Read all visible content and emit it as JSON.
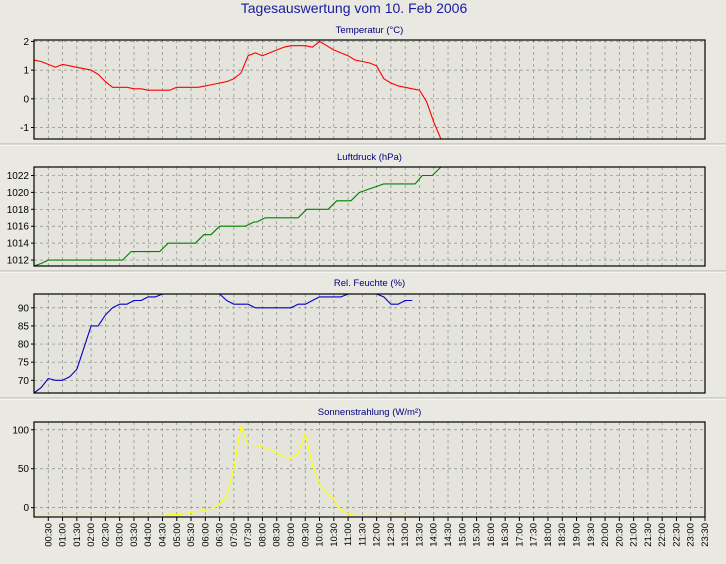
{
  "title": "Tagesauswertung vom 10. Feb 2006",
  "chart_data": [
    {
      "type": "line",
      "title": "Temperatur (°C)",
      "ylim": [
        -1.4,
        2.05
      ],
      "yticks": [
        {
          "v": -1,
          "label": "-1"
        },
        {
          "v": 0,
          "label": "0"
        },
        {
          "v": 1,
          "label": "1"
        },
        {
          "v": 2,
          "label": "2"
        }
      ],
      "color": "#ff0000",
      "series": [
        {
          "values": [
            [
              0,
              1.35
            ],
            [
              0.5,
              1.3
            ],
            [
              1,
              1.2
            ],
            [
              1.5,
              1.1
            ],
            [
              2,
              1.2
            ],
            [
              2.5,
              1.15
            ],
            [
              3,
              1.1
            ],
            [
              3.5,
              1.05
            ],
            [
              4,
              1.0
            ],
            [
              4.5,
              0.85
            ],
            [
              5,
              0.6
            ],
            [
              5.5,
              0.4
            ],
            [
              6,
              0.4
            ],
            [
              6.5,
              0.4
            ],
            [
              7,
              0.35
            ],
            [
              7.5,
              0.35
            ],
            [
              8,
              0.3
            ],
            [
              8.5,
              0.3
            ],
            [
              9,
              0.3
            ],
            [
              9.5,
              0.3
            ],
            [
              10,
              0.4
            ],
            [
              10.5,
              0.4
            ],
            [
              11,
              0.4
            ],
            [
              11.5,
              0.4
            ],
            [
              12,
              0.45
            ],
            [
              12.5,
              0.5
            ],
            [
              13,
              0.55
            ],
            [
              13.5,
              0.6
            ],
            [
              14,
              0.7
            ],
            [
              14.5,
              0.9
            ],
            [
              15,
              1.5
            ],
            [
              15.5,
              1.6
            ],
            [
              16,
              1.5
            ],
            [
              16.5,
              1.6
            ],
            [
              17,
              1.7
            ],
            [
              17.5,
              1.8
            ],
            [
              18,
              1.85
            ],
            [
              18.5,
              1.85
            ],
            [
              19,
              1.85
            ],
            [
              19.5,
              1.8
            ],
            [
              20,
              2.0
            ],
            [
              20.5,
              1.85
            ],
            [
              21,
              1.7
            ],
            [
              21.5,
              1.6
            ],
            [
              22,
              1.5
            ],
            [
              22.5,
              1.35
            ],
            [
              23,
              1.3
            ],
            [
              23.5,
              1.25
            ],
            [
              24,
              1.15
            ],
            [
              24.5,
              0.7
            ],
            [
              25,
              0.55
            ],
            [
              25.5,
              0.45
            ],
            [
              26,
              0.4
            ],
            [
              26.5,
              0.35
            ],
            [
              27,
              0.3
            ],
            [
              27.5,
              -0.1
            ],
            [
              28,
              -0.8
            ],
            [
              28.5,
              -1.4
            ]
          ]
        }
      ]
    },
    {
      "type": "line",
      "title": "Luftdruck (hPa)",
      "ylim": [
        1011.3,
        1023.0
      ],
      "yticks": [
        {
          "v": 1012,
          "label": "1012"
        },
        {
          "v": 1014,
          "label": "1014"
        },
        {
          "v": 1016,
          "label": "1016"
        },
        {
          "v": 1018,
          "label": "1018"
        },
        {
          "v": 1020,
          "label": "1020"
        },
        {
          "v": 1022,
          "label": "1022"
        }
      ],
      "color": "#008000",
      "series": [
        {
          "values": [
            [
              0,
              1011.3
            ],
            [
              0.5,
              1011.6
            ],
            [
              1,
              1012
            ],
            [
              6.2,
              1012
            ],
            [
              6.8,
              1013
            ],
            [
              8.8,
              1013
            ],
            [
              9.4,
              1014
            ],
            [
              11.3,
              1014
            ],
            [
              11.9,
              1015
            ],
            [
              12.4,
              1015
            ],
            [
              13,
              1016
            ],
            [
              14.8,
              1016
            ],
            [
              15.4,
              1016.5
            ],
            [
              15.6,
              1016.5
            ],
            [
              16.2,
              1017
            ],
            [
              18.5,
              1017
            ],
            [
              19.1,
              1018
            ],
            [
              20.6,
              1018
            ],
            [
              21.2,
              1019
            ],
            [
              22.2,
              1019
            ],
            [
              22.8,
              1020
            ],
            [
              24.5,
              1021
            ],
            [
              26.7,
              1021
            ],
            [
              27.2,
              1022
            ],
            [
              27.9,
              1022
            ],
            [
              28.5,
              1023
            ]
          ]
        }
      ]
    },
    {
      "type": "line",
      "title": "Rel. Feuchte (%)",
      "ylim": [
        66.5,
        93.8
      ],
      "yticks": [
        {
          "v": 70,
          "label": "70"
        },
        {
          "v": 75,
          "label": "75"
        },
        {
          "v": 80,
          "label": "80"
        },
        {
          "v": 85,
          "label": "85"
        },
        {
          "v": 90,
          "label": "90"
        }
      ],
      "color": "#0000cc",
      "series": [
        {
          "values": [
            [
              0,
              66.5
            ],
            [
              0.5,
              68
            ],
            [
              1,
              70.5
            ],
            [
              1.5,
              70
            ],
            [
              2,
              70
            ],
            [
              2.5,
              71
            ],
            [
              3,
              73
            ],
            [
              3.5,
              79
            ],
            [
              4,
              85
            ],
            [
              4.5,
              85
            ],
            [
              5,
              88
            ],
            [
              5.5,
              90
            ],
            [
              6,
              91
            ],
            [
              6.5,
              91
            ],
            [
              7,
              92
            ],
            [
              7.5,
              92
            ],
            [
              8,
              93
            ],
            [
              8.5,
              93
            ],
            [
              9,
              94
            ],
            [
              9.5,
              94
            ],
            [
              10,
              94
            ],
            [
              10.5,
              94
            ],
            [
              11,
              94
            ],
            [
              11.5,
              94
            ],
            [
              12,
              94
            ],
            [
              12.5,
              94
            ],
            [
              13,
              94
            ],
            [
              13.5,
              92
            ],
            [
              14,
              91
            ],
            [
              14.5,
              91
            ],
            [
              15,
              91
            ],
            [
              15.5,
              90
            ],
            [
              16,
              90
            ],
            [
              16.5,
              90
            ],
            [
              17,
              90
            ],
            [
              17.5,
              90
            ],
            [
              18,
              90
            ],
            [
              18.5,
              91
            ],
            [
              19,
              91
            ],
            [
              19.5,
              92
            ],
            [
              20,
              93
            ],
            [
              20.5,
              93
            ],
            [
              21,
              93
            ],
            [
              21.5,
              93
            ],
            [
              22,
              94
            ],
            [
              22.5,
              94
            ],
            [
              23,
              94
            ],
            [
              23.5,
              94
            ],
            [
              24,
              94
            ],
            [
              24.5,
              93
            ],
            [
              25,
              91
            ],
            [
              25.5,
              91
            ],
            [
              26,
              92
            ],
            [
              26.5,
              92
            ]
          ]
        }
      ]
    },
    {
      "type": "line",
      "title": "Sonnenstrahlung (W/m²)",
      "ylim": [
        -12,
        110
      ],
      "yticks": [
        {
          "v": 0,
          "label": "0"
        },
        {
          "v": 50,
          "label": "50"
        },
        {
          "v": 100,
          "label": "100"
        }
      ],
      "color": "#ffff00",
      "series": [
        {
          "values": [
            [
              0,
              -10
            ],
            [
              9,
              -10
            ],
            [
              9.5,
              -9
            ],
            [
              10,
              -9
            ],
            [
              10.5,
              -8
            ],
            [
              11,
              -6
            ],
            [
              11.5,
              -5
            ],
            [
              12,
              -3
            ],
            [
              12.5,
              -2
            ],
            [
              13,
              5
            ],
            [
              13.5,
              15
            ],
            [
              14,
              50
            ],
            [
              14.5,
              105
            ],
            [
              15,
              80
            ],
            [
              15.5,
              80
            ],
            [
              16,
              78
            ],
            [
              16.5,
              75
            ],
            [
              17,
              70
            ],
            [
              17.5,
              65
            ],
            [
              18,
              63
            ],
            [
              18.5,
              70
            ],
            [
              19,
              95
            ],
            [
              19.5,
              55
            ],
            [
              20,
              30
            ],
            [
              20.5,
              20
            ],
            [
              21,
              10
            ],
            [
              21.5,
              -3
            ],
            [
              22,
              -8
            ],
            [
              22.5,
              -10
            ],
            [
              26,
              -10
            ]
          ]
        }
      ]
    }
  ],
  "x_tick_labels": [
    "00:30",
    "01:00",
    "01:30",
    "02:00",
    "02:30",
    "03:00",
    "03:30",
    "04:00",
    "04:30",
    "05:00",
    "05:30",
    "06:00",
    "06:30",
    "07:00",
    "07:30",
    "08:00",
    "08:30",
    "09:00",
    "09:30",
    "10:00",
    "10:30",
    "11:00",
    "11:30",
    "12:00",
    "12:30",
    "13:00",
    "13:30",
    "14:00",
    "14:30",
    "15:00",
    "15:30",
    "16:00",
    "16:30",
    "17:00",
    "17:30",
    "18:00",
    "18:30",
    "19:00",
    "19:30",
    "20:00",
    "20:30",
    "21:00",
    "21:30",
    "22:00",
    "22:30",
    "23:00",
    "23:30"
  ]
}
